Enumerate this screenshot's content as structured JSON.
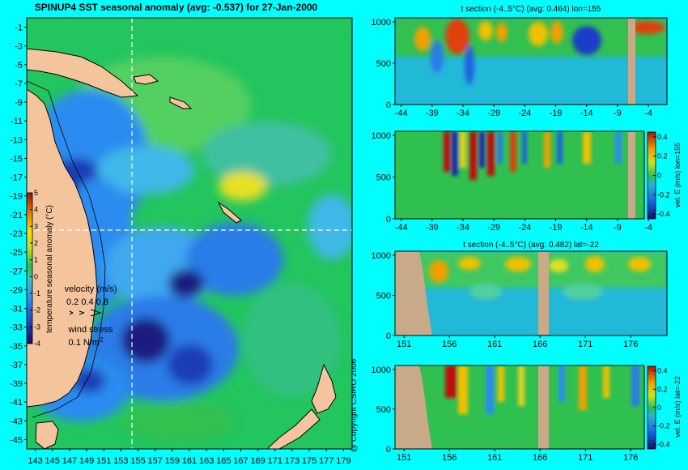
{
  "title": "SPINUP4 SST seasonal anomaly (avg: -0.537) for 27-Jan-2000",
  "copyright": "@ Copyright CSIRO 2006",
  "colors": {
    "background": "#00ffff",
    "land": "#f4c49c",
    "ocean_base": "#22c55e",
    "nodata": "#c8aa88",
    "crosshair": "#ffffff"
  },
  "chart_data": [
    {
      "type": "heatmap",
      "title": "SPINUP4 SST seasonal anomaly (avg: -0.537) for 27-Jan-2000",
      "x_ticks": [
        "143",
        "145",
        "147",
        "149",
        "151",
        "153",
        "155",
        "157",
        "159",
        "161",
        "163",
        "165",
        "167",
        "169",
        "171",
        "173",
        "175",
        "177",
        "179"
      ],
      "y_ticks": [
        "-1",
        "-3",
        "-5",
        "-7",
        "-9",
        "-11",
        "-13",
        "-15",
        "-17",
        "-19",
        "-21",
        "-23",
        "-25",
        "-27",
        "-29",
        "-31",
        "-33",
        "-35",
        "-37",
        "-39",
        "-41",
        "-43",
        "-45"
      ],
      "xlim": [
        142,
        180
      ],
      "ylim": [
        -46,
        0
      ],
      "crosshair": {
        "lon": 155,
        "lat": -22
      },
      "colorbar": {
        "label": "temperature seasonal anomaly (°C)",
        "ticks": [
          "5",
          "4",
          "3",
          "2",
          "1",
          "0",
          "-1",
          "-2",
          "-3",
          "-4"
        ],
        "range": [
          -4,
          5
        ]
      },
      "legend": {
        "velocity_label": "velocity (m/s)",
        "velocity_scale": "0.2 0.4 0.8",
        "wind_label": "wind stress",
        "wind_scale": "0.1 N/m",
        "wind_scale_sup": "2"
      }
    },
    {
      "type": "heatmap",
      "title": "t section (-4..5°C) (avg: 0.464) lon=155",
      "x_ticks": [
        "-44",
        "-39",
        "-34",
        "-29",
        "-24",
        "-19",
        "-14",
        "-9",
        "-4"
      ],
      "y_ticks": [
        "0",
        "500",
        "1000"
      ],
      "xlim": [
        -45,
        -1
      ],
      "ylim": [
        1050,
        0
      ]
    },
    {
      "type": "heatmap",
      "title": "",
      "x_ticks": [
        "-44",
        "-39",
        "-34",
        "-29",
        "-24",
        "-19",
        "-14",
        "-9",
        "-4"
      ],
      "y_ticks": [
        "0",
        "500",
        "1000"
      ],
      "xlim": [
        -45,
        -1
      ],
      "ylim": [
        1050,
        0
      ],
      "colorbar": {
        "label": "vel. E (m/s) lon=155",
        "ticks": [
          "0.4",
          "0.2",
          "0",
          "-0.2",
          "-0.4"
        ],
        "range": [
          -0.45,
          0.45
        ]
      }
    },
    {
      "type": "heatmap",
      "title": "t section (-4..5°C) (avg: 0.482) lat=-22",
      "x_ticks": [
        "151",
        "156",
        "161",
        "166",
        "171",
        "176"
      ],
      "y_ticks": [
        "0",
        "500",
        "1000"
      ],
      "xlim": [
        150,
        180
      ],
      "ylim": [
        1050,
        0
      ]
    },
    {
      "type": "heatmap",
      "title": "",
      "x_ticks": [
        "151",
        "156",
        "161",
        "166",
        "171",
        "176"
      ],
      "y_ticks": [
        "0",
        "500",
        "1000"
      ],
      "xlim": [
        150,
        180
      ],
      "ylim": [
        1050,
        0
      ],
      "colorbar": {
        "label": "vel. E (m/s) lat=-22",
        "ticks": [
          "0.4",
          "0.2",
          "0",
          "-0.2",
          "-0.4"
        ],
        "range": [
          -0.45,
          0.45
        ]
      }
    }
  ]
}
